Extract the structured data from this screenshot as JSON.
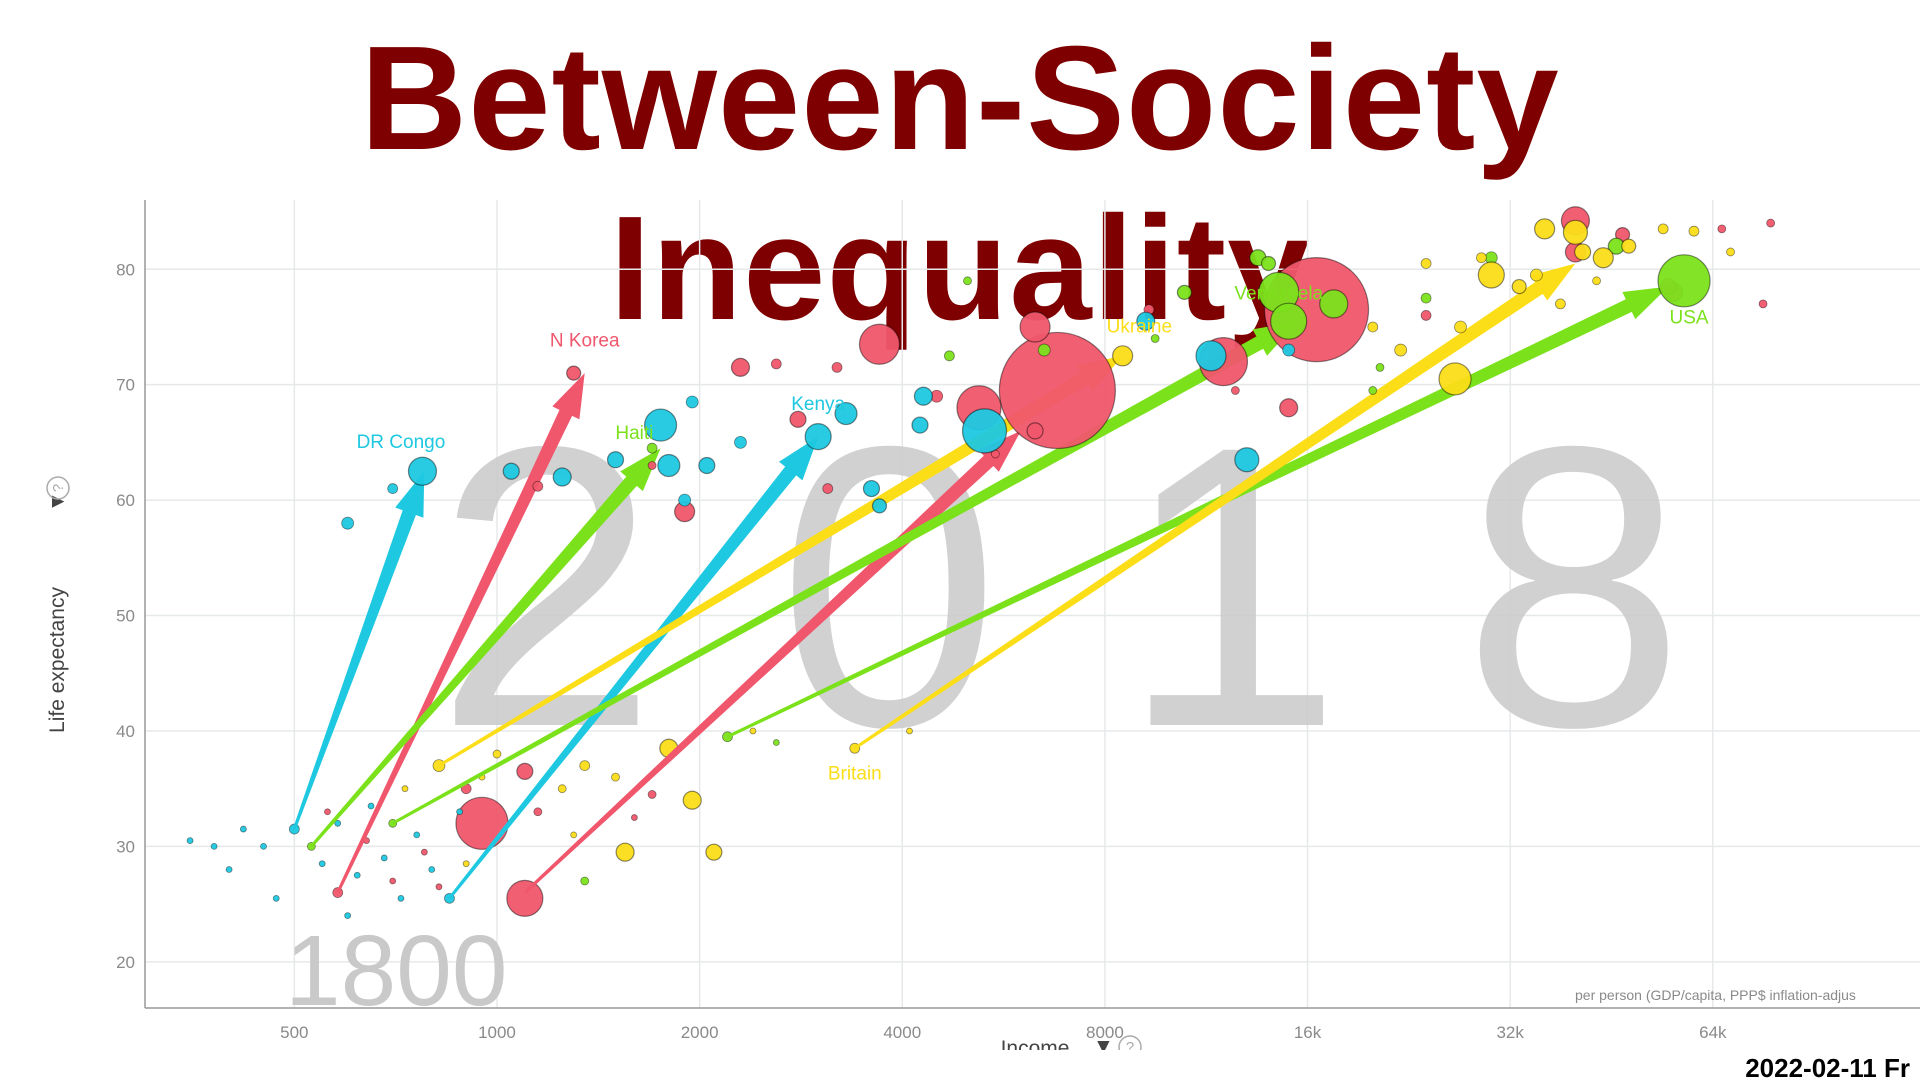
{
  "slide": {
    "title": "Between-Society Inequality",
    "date": "2022-02-11 Fr"
  },
  "colors": {
    "title": "#7f0000",
    "red": "#f0566c",
    "cyan": "#1dc8e0",
    "green": "#7be11b",
    "yellow": "#fbdd18",
    "grid": "#e6e9ea",
    "year_watermark": "#c9c9c9"
  },
  "chart_data": {
    "type": "scatter",
    "x_scale": "log",
    "xlabel": "Income",
    "ylabel": "Life expectancy",
    "x_ticks": [
      {
        "value": 500,
        "label": "500"
      },
      {
        "value": 1000,
        "label": "1000"
      },
      {
        "value": 2000,
        "label": "2000"
      },
      {
        "value": 4000,
        "label": "4000"
      },
      {
        "value": 8000,
        "label": "8000"
      },
      {
        "value": 16000,
        "label": "16k"
      },
      {
        "value": 32000,
        "label": "32k"
      },
      {
        "value": 64000,
        "label": "64k"
      }
    ],
    "y_ticks": [
      20,
      30,
      40,
      50,
      60,
      70,
      80
    ],
    "xlim": [
      300,
      130000
    ],
    "ylim": [
      16,
      86
    ],
    "grid": true,
    "year_start": "1800",
    "year_end": "2018",
    "source_note": "per person (GDP/capita, PPP$ inflation-adjus",
    "labeled_countries": [
      {
        "name": "DR Congo",
        "color": "cyan",
        "from": [
          500,
          31.5
        ],
        "to": [
          780,
          62.5
        ],
        "label_at": [
          720,
          64.5
        ]
      },
      {
        "name": "N Korea",
        "color": "red",
        "from": [
          580,
          26
        ],
        "to": [
          1350,
          71
        ],
        "label_at": [
          1350,
          73.3
        ]
      },
      {
        "name": "Haiti",
        "color": "green",
        "from": [
          530,
          30
        ],
        "to": [
          1750,
          64.5
        ],
        "label_at": [
          1600,
          65.3
        ]
      },
      {
        "name": "Kenya",
        "color": "cyan",
        "from": [
          850,
          25.5
        ],
        "to": [
          3000,
          65.5
        ],
        "label_at": [
          3000,
          67.8
        ]
      },
      {
        "name": "Ukraine",
        "color": "yellow",
        "from": [
          820,
          37
        ],
        "to": [
          8500,
          72.5
        ],
        "label_at": [
          9000,
          74.5
        ]
      },
      {
        "name": "Venezuela",
        "color": "green",
        "from": [
          700,
          32
        ],
        "to": [
          15500,
          75.5
        ],
        "label_at": [
          14500,
          77.4
        ]
      },
      {
        "name": "USA",
        "color": "green",
        "from": [
          2200,
          39.5
        ],
        "to": [
          55000,
          78.5
        ],
        "label_at": [
          59000,
          75.3
        ]
      },
      {
        "name": "Britain",
        "color": "yellow",
        "from": [
          3400,
          38.5
        ],
        "to": [
          40000,
          80.5
        ],
        "label_at": [
          3400,
          35.8
        ]
      }
    ],
    "other_arrows": [
      {
        "color": "red",
        "from": [
          1100,
          26
        ],
        "to": [
          6000,
          66
        ]
      }
    ],
    "bubbles_2018": [
      {
        "x": 6800,
        "y": 69.5,
        "r": 58,
        "c": "red"
      },
      {
        "x": 16500,
        "y": 76.5,
        "r": 52,
        "c": "red"
      },
      {
        "x": 3700,
        "y": 73.5,
        "r": 20,
        "c": "red"
      },
      {
        "x": 5200,
        "y": 68,
        "r": 22,
        "c": "red"
      },
      {
        "x": 12000,
        "y": 72,
        "r": 24,
        "c": "red"
      },
      {
        "x": 6300,
        "y": 75,
        "r": 15,
        "c": "red"
      },
      {
        "x": 40000,
        "y": 84.2,
        "r": 14,
        "c": "red"
      },
      {
        "x": 40000,
        "y": 81.5,
        "r": 10,
        "c": "red"
      },
      {
        "x": 1900,
        "y": 59,
        "r": 10,
        "c": "red"
      },
      {
        "x": 2300,
        "y": 71.5,
        "r": 9,
        "c": "red"
      },
      {
        "x": 2800,
        "y": 67,
        "r": 8,
        "c": "red"
      },
      {
        "x": 15000,
        "y": 68,
        "r": 9,
        "c": "red"
      },
      {
        "x": 4500,
        "y": 69,
        "r": 6,
        "c": "red"
      },
      {
        "x": 6300,
        "y": 66,
        "r": 8,
        "c": "red"
      },
      {
        "x": 1300,
        "y": 71,
        "r": 7,
        "c": "red"
      },
      {
        "x": 56000,
        "y": 78,
        "r": 9,
        "c": "red"
      },
      {
        "x": 47000,
        "y": 83,
        "r": 7,
        "c": "red"
      },
      {
        "x": 2600,
        "y": 71.8,
        "r": 5,
        "c": "red"
      },
      {
        "x": 3200,
        "y": 71.5,
        "r": 5,
        "c": "red"
      },
      {
        "x": 9300,
        "y": 76.5,
        "r": 5,
        "c": "red"
      },
      {
        "x": 76000,
        "y": 77,
        "r": 4,
        "c": "red"
      },
      {
        "x": 24000,
        "y": 76,
        "r": 5,
        "c": "red"
      },
      {
        "x": 3100,
        "y": 61,
        "r": 5,
        "c": "red"
      },
      {
        "x": 1150,
        "y": 61.2,
        "r": 5,
        "c": "red"
      },
      {
        "x": 5500,
        "y": 64,
        "r": 4,
        "c": "red"
      },
      {
        "x": 78000,
        "y": 84,
        "r": 4,
        "c": "red"
      },
      {
        "x": 55000,
        "y": 78.5,
        "r": 8,
        "c": "red"
      },
      {
        "x": 66000,
        "y": 83.5,
        "r": 4,
        "c": "red"
      },
      {
        "x": 1700,
        "y": 63,
        "r": 4,
        "c": "red"
      },
      {
        "x": 12500,
        "y": 69.5,
        "r": 4,
        "c": "red"
      },
      {
        "x": 775,
        "y": 62.5,
        "r": 14,
        "c": "cyan"
      },
      {
        "x": 1750,
        "y": 66.5,
        "r": 16,
        "c": "cyan"
      },
      {
        "x": 3000,
        "y": 65.5,
        "r": 13,
        "c": "cyan"
      },
      {
        "x": 5300,
        "y": 66,
        "r": 22,
        "c": "cyan"
      },
      {
        "x": 11500,
        "y": 72.5,
        "r": 15,
        "c": "cyan"
      },
      {
        "x": 9200,
        "y": 75.5,
        "r": 9,
        "c": "cyan"
      },
      {
        "x": 13000,
        "y": 63.5,
        "r": 12,
        "c": "cyan"
      },
      {
        "x": 1800,
        "y": 63,
        "r": 11,
        "c": "cyan"
      },
      {
        "x": 3300,
        "y": 67.5,
        "r": 11,
        "c": "cyan"
      },
      {
        "x": 1250,
        "y": 62,
        "r": 9,
        "c": "cyan"
      },
      {
        "x": 4300,
        "y": 69,
        "r": 9,
        "c": "cyan"
      },
      {
        "x": 3600,
        "y": 61,
        "r": 8,
        "c": "cyan"
      },
      {
        "x": 1500,
        "y": 63.5,
        "r": 8,
        "c": "cyan"
      },
      {
        "x": 4250,
        "y": 66.5,
        "r": 8,
        "c": "cyan"
      },
      {
        "x": 1050,
        "y": 62.5,
        "r": 8,
        "c": "cyan"
      },
      {
        "x": 3700,
        "y": 59.5,
        "r": 7,
        "c": "cyan"
      },
      {
        "x": 2050,
        "y": 63,
        "r": 8,
        "c": "cyan"
      },
      {
        "x": 1950,
        "y": 68.5,
        "r": 6,
        "c": "cyan"
      },
      {
        "x": 2300,
        "y": 65,
        "r": 6,
        "c": "cyan"
      },
      {
        "x": 600,
        "y": 58,
        "r": 6,
        "c": "cyan"
      },
      {
        "x": 1900,
        "y": 60,
        "r": 6,
        "c": "cyan"
      },
      {
        "x": 700,
        "y": 61,
        "r": 5,
        "c": "cyan"
      },
      {
        "x": 15000,
        "y": 73,
        "r": 6,
        "c": "cyan"
      },
      {
        "x": 14500,
        "y": 78,
        "r": 20,
        "c": "green"
      },
      {
        "x": 15000,
        "y": 75.5,
        "r": 18,
        "c": "green"
      },
      {
        "x": 17500,
        "y": 77,
        "r": 14,
        "c": "green"
      },
      {
        "x": 58000,
        "y": 79,
        "r": 26,
        "c": "green"
      },
      {
        "x": 13500,
        "y": 81,
        "r": 8,
        "c": "green"
      },
      {
        "x": 46000,
        "y": 82,
        "r": 8,
        "c": "green"
      },
      {
        "x": 6500,
        "y": 73,
        "r": 6,
        "c": "green"
      },
      {
        "x": 10500,
        "y": 78,
        "r": 7,
        "c": "green"
      },
      {
        "x": 14000,
        "y": 80.5,
        "r": 7,
        "c": "green"
      },
      {
        "x": 4700,
        "y": 72.5,
        "r": 5,
        "c": "green"
      },
      {
        "x": 1700,
        "y": 64.5,
        "r": 5,
        "c": "green"
      },
      {
        "x": 30000,
        "y": 81,
        "r": 6,
        "c": "green"
      },
      {
        "x": 24000,
        "y": 77.5,
        "r": 5,
        "c": "green"
      },
      {
        "x": 20000,
        "y": 69.5,
        "r": 4,
        "c": "green"
      },
      {
        "x": 5000,
        "y": 79,
        "r": 4,
        "c": "green"
      },
      {
        "x": 9500,
        "y": 74,
        "r": 4,
        "c": "green"
      },
      {
        "x": 20500,
        "y": 71.5,
        "r": 4,
        "c": "green"
      },
      {
        "x": 40000,
        "y": 83.2,
        "r": 12,
        "c": "yellow"
      },
      {
        "x": 30000,
        "y": 79.5,
        "r": 13,
        "c": "yellow"
      },
      {
        "x": 26500,
        "y": 70.5,
        "r": 16,
        "c": "yellow"
      },
      {
        "x": 8500,
        "y": 72.5,
        "r": 10,
        "c": "yellow"
      },
      {
        "x": 36000,
        "y": 83.5,
        "r": 10,
        "c": "yellow"
      },
      {
        "x": 44000,
        "y": 81,
        "r": 10,
        "c": "yellow"
      },
      {
        "x": 41000,
        "y": 81.5,
        "r": 8,
        "c": "yellow"
      },
      {
        "x": 48000,
        "y": 82,
        "r": 7,
        "c": "yellow"
      },
      {
        "x": 33000,
        "y": 78.5,
        "r": 7,
        "c": "yellow"
      },
      {
        "x": 22000,
        "y": 73,
        "r": 6,
        "c": "yellow"
      },
      {
        "x": 27000,
        "y": 75,
        "r": 6,
        "c": "yellow"
      },
      {
        "x": 29000,
        "y": 81,
        "r": 5,
        "c": "yellow"
      },
      {
        "x": 35000,
        "y": 79.5,
        "r": 6,
        "c": "yellow"
      },
      {
        "x": 54000,
        "y": 83.5,
        "r": 5,
        "c": "yellow"
      },
      {
        "x": 60000,
        "y": 83.3,
        "r": 5,
        "c": "yellow"
      },
      {
        "x": 38000,
        "y": 77,
        "r": 5,
        "c": "yellow"
      },
      {
        "x": 24000,
        "y": 80.5,
        "r": 5,
        "c": "yellow"
      },
      {
        "x": 43000,
        "y": 79,
        "r": 4,
        "c": "yellow"
      },
      {
        "x": 68000,
        "y": 81.5,
        "r": 4,
        "c": "yellow"
      },
      {
        "x": 20000,
        "y": 75,
        "r": 5,
        "c": "yellow"
      }
    ],
    "bubbles_1800": [
      {
        "x": 950,
        "y": 32,
        "r": 26,
        "c": "red"
      },
      {
        "x": 1100,
        "y": 25.5,
        "r": 18,
        "c": "red"
      },
      {
        "x": 1100,
        "y": 36.5,
        "r": 8,
        "c": "red"
      },
      {
        "x": 580,
        "y": 26,
        "r": 5,
        "c": "red"
      },
      {
        "x": 900,
        "y": 35,
        "r": 5,
        "c": "red"
      },
      {
        "x": 1700,
        "y": 34.5,
        "r": 4,
        "c": "red"
      },
      {
        "x": 1150,
        "y": 33,
        "r": 4,
        "c": "red"
      },
      {
        "x": 1800,
        "y": 38.5,
        "r": 9,
        "c": "yellow"
      },
      {
        "x": 1950,
        "y": 34,
        "r": 9,
        "c": "yellow"
      },
      {
        "x": 1550,
        "y": 29.5,
        "r": 9,
        "c": "yellow"
      },
      {
        "x": 2100,
        "y": 29.5,
        "r": 8,
        "c": "yellow"
      },
      {
        "x": 820,
        "y": 37,
        "r": 6,
        "c": "yellow"
      },
      {
        "x": 3400,
        "y": 38.5,
        "r": 5,
        "c": "yellow"
      },
      {
        "x": 1350,
        "y": 37,
        "r": 5,
        "c": "yellow"
      },
      {
        "x": 1500,
        "y": 36,
        "r": 4,
        "c": "yellow"
      },
      {
        "x": 1250,
        "y": 35,
        "r": 4,
        "c": "yellow"
      },
      {
        "x": 1000,
        "y": 38,
        "r": 4,
        "c": "yellow"
      },
      {
        "x": 2200,
        "y": 39.5,
        "r": 5,
        "c": "green"
      },
      {
        "x": 700,
        "y": 32,
        "r": 4,
        "c": "green"
      },
      {
        "x": 530,
        "y": 30,
        "r": 4,
        "c": "green"
      },
      {
        "x": 1350,
        "y": 27,
        "r": 4,
        "c": "green"
      },
      {
        "x": 500,
        "y": 31.5,
        "r": 5,
        "c": "cyan"
      },
      {
        "x": 850,
        "y": 25.5,
        "r": 5,
        "c": "cyan"
      },
      {
        "x": 380,
        "y": 30,
        "r": 3,
        "c": "cyan"
      },
      {
        "x": 420,
        "y": 31.5,
        "r": 3,
        "c": "cyan"
      },
      {
        "x": 450,
        "y": 30,
        "r": 3,
        "c": "cyan"
      },
      {
        "x": 470,
        "y": 25.5,
        "r": 3,
        "c": "cyan"
      },
      {
        "x": 550,
        "y": 28.5,
        "r": 3,
        "c": "cyan"
      },
      {
        "x": 620,
        "y": 27.5,
        "r": 3,
        "c": "cyan"
      },
      {
        "x": 680,
        "y": 29,
        "r": 3,
        "c": "cyan"
      },
      {
        "x": 720,
        "y": 25.5,
        "r": 3,
        "c": "cyan"
      },
      {
        "x": 760,
        "y": 31,
        "r": 3,
        "c": "cyan"
      },
      {
        "x": 800,
        "y": 28,
        "r": 3,
        "c": "cyan"
      },
      {
        "x": 880,
        "y": 33,
        "r": 3,
        "c": "cyan"
      },
      {
        "x": 650,
        "y": 33.5,
        "r": 3,
        "c": "cyan"
      },
      {
        "x": 580,
        "y": 32,
        "r": 3,
        "c": "cyan"
      },
      {
        "x": 400,
        "y": 28,
        "r": 3,
        "c": "cyan"
      },
      {
        "x": 350,
        "y": 30.5,
        "r": 3,
        "c": "cyan"
      },
      {
        "x": 600,
        "y": 24,
        "r": 3,
        "c": "cyan"
      },
      {
        "x": 700,
        "y": 27,
        "r": 3,
        "c": "red"
      },
      {
        "x": 780,
        "y": 29.5,
        "r": 3,
        "c": "red"
      },
      {
        "x": 640,
        "y": 30.5,
        "r": 3,
        "c": "red"
      },
      {
        "x": 560,
        "y": 33,
        "r": 3,
        "c": "red"
      },
      {
        "x": 820,
        "y": 26.5,
        "r": 3,
        "c": "red"
      },
      {
        "x": 900,
        "y": 28.5,
        "r": 3,
        "c": "yellow"
      },
      {
        "x": 950,
        "y": 36,
        "r": 3,
        "c": "yellow"
      },
      {
        "x": 730,
        "y": 35,
        "r": 3,
        "c": "yellow"
      },
      {
        "x": 1300,
        "y": 31,
        "r": 3,
        "c": "yellow"
      },
      {
        "x": 1600,
        "y": 32.5,
        "r": 3,
        "c": "red"
      },
      {
        "x": 2400,
        "y": 40,
        "r": 3,
        "c": "yellow"
      },
      {
        "x": 2600,
        "y": 39,
        "r": 3,
        "c": "green"
      },
      {
        "x": 4100,
        "y": 40,
        "r": 3,
        "c": "yellow"
      }
    ]
  }
}
